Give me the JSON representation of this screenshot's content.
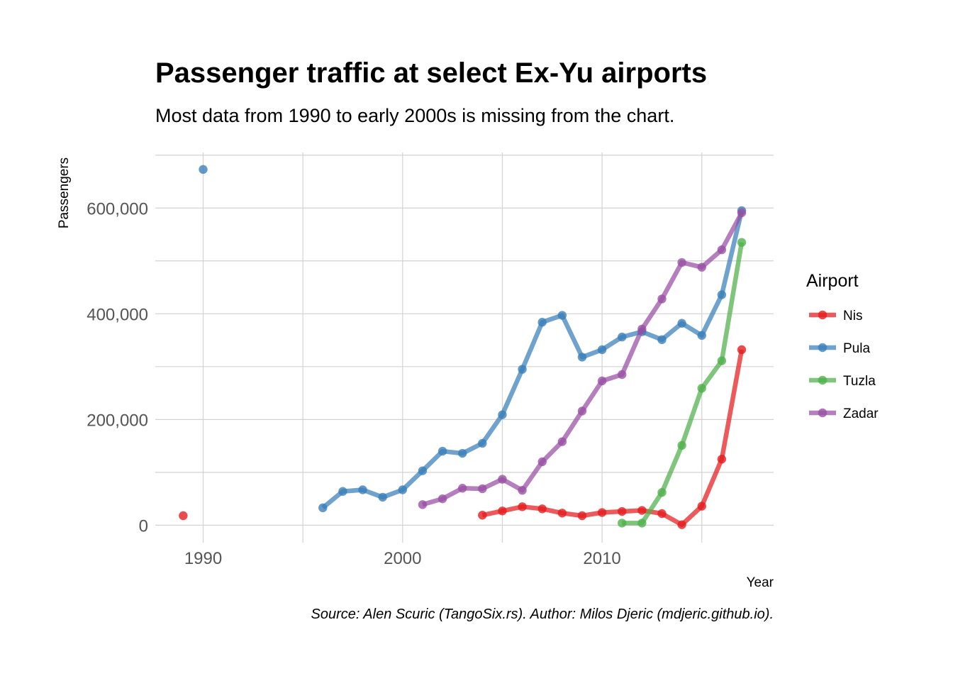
{
  "chart_data": {
    "type": "line",
    "title": "Passenger traffic at select Ex-Yu airports",
    "subtitle": "Most data from 1990 to early 2000s is missing from the chart.",
    "xlabel": "Year",
    "ylabel": "Passengers",
    "caption": "Source: Alen Scuric (TangoSix.rs). Author: Milos Djeric (mdjeric.github.io).",
    "xlim": [
      1987.6,
      2018.6
    ],
    "ylim": [
      -33000,
      705000
    ],
    "x_ticks": [
      1990,
      2000,
      2010
    ],
    "x_tick_labels": [
      "1990",
      "2000",
      "2010"
    ],
    "y_ticks": [
      0,
      200000,
      400000,
      600000
    ],
    "y_tick_labels": [
      "0",
      "200,000",
      "400,000",
      "600,000"
    ],
    "grid": true,
    "legend": {
      "title": "Airport",
      "position": "right"
    },
    "series": [
      {
        "name": "Nis",
        "color": "#e41a1c",
        "points": [
          {
            "x": 1989,
            "y": 18000
          },
          {
            "x": 2004,
            "y": 19000
          },
          {
            "x": 2005,
            "y": 27000
          },
          {
            "x": 2006,
            "y": 35000
          },
          {
            "x": 2007,
            "y": 31000
          },
          {
            "x": 2008,
            "y": 23000
          },
          {
            "x": 2009,
            "y": 18000
          },
          {
            "x": 2010,
            "y": 24000
          },
          {
            "x": 2011,
            "y": 26000
          },
          {
            "x": 2012,
            "y": 28000
          },
          {
            "x": 2013,
            "y": 22000
          },
          {
            "x": 2014,
            "y": 1000
          },
          {
            "x": 2015,
            "y": 36000
          },
          {
            "x": 2016,
            "y": 125000
          },
          {
            "x": 2017,
            "y": 332000
          }
        ]
      },
      {
        "name": "Pula",
        "color": "#377eb8",
        "points": [
          {
            "x": 1990,
            "y": 673000
          },
          {
            "x": 1996,
            "y": 33000
          },
          {
            "x": 1997,
            "y": 64000
          },
          {
            "x": 1998,
            "y": 67000
          },
          {
            "x": 1999,
            "y": 53000
          },
          {
            "x": 2000,
            "y": 67000
          },
          {
            "x": 2001,
            "y": 103000
          },
          {
            "x": 2002,
            "y": 140000
          },
          {
            "x": 2003,
            "y": 136000
          },
          {
            "x": 2004,
            "y": 155000
          },
          {
            "x": 2005,
            "y": 209000
          },
          {
            "x": 2006,
            "y": 295000
          },
          {
            "x": 2007,
            "y": 384000
          },
          {
            "x": 2008,
            "y": 397000
          },
          {
            "x": 2009,
            "y": 318000
          },
          {
            "x": 2010,
            "y": 332000
          },
          {
            "x": 2011,
            "y": 356000
          },
          {
            "x": 2012,
            "y": 366000
          },
          {
            "x": 2013,
            "y": 351000
          },
          {
            "x": 2014,
            "y": 382000
          },
          {
            "x": 2015,
            "y": 359000
          },
          {
            "x": 2016,
            "y": 436000
          },
          {
            "x": 2017,
            "y": 595000
          }
        ]
      },
      {
        "name": "Tuzla",
        "color": "#4daf4a",
        "points": [
          {
            "x": 2011,
            "y": 4000
          },
          {
            "x": 2012,
            "y": 4000
          },
          {
            "x": 2013,
            "y": 62000
          },
          {
            "x": 2014,
            "y": 151000
          },
          {
            "x": 2015,
            "y": 259000
          },
          {
            "x": 2016,
            "y": 311000
          },
          {
            "x": 2017,
            "y": 535000
          }
        ]
      },
      {
        "name": "Zadar",
        "color": "#984ea3",
        "points": [
          {
            "x": 2001,
            "y": 39000
          },
          {
            "x": 2002,
            "y": 50000
          },
          {
            "x": 2003,
            "y": 70000
          },
          {
            "x": 2004,
            "y": 69000
          },
          {
            "x": 2005,
            "y": 87000
          },
          {
            "x": 2006,
            "y": 66000
          },
          {
            "x": 2007,
            "y": 120000
          },
          {
            "x": 2008,
            "y": 158000
          },
          {
            "x": 2009,
            "y": 216000
          },
          {
            "x": 2010,
            "y": 273000
          },
          {
            "x": 2011,
            "y": 285000
          },
          {
            "x": 2012,
            "y": 371000
          },
          {
            "x": 2013,
            "y": 428000
          },
          {
            "x": 2014,
            "y": 497000
          },
          {
            "x": 2015,
            "y": 488000
          },
          {
            "x": 2016,
            "y": 521000
          },
          {
            "x": 2017,
            "y": 591000
          }
        ]
      }
    ]
  }
}
